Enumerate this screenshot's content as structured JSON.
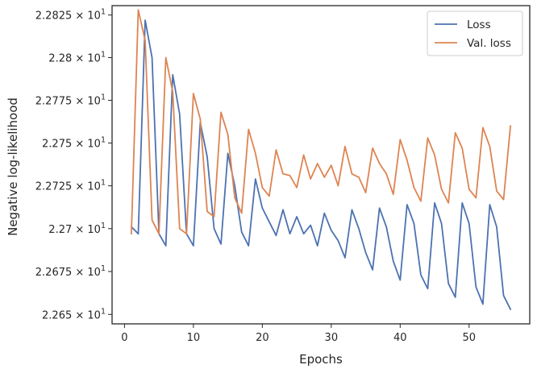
{
  "chart_data": {
    "type": "line",
    "title": "",
    "xlabel": "Epochs",
    "ylabel": "Negative log-likelihood",
    "xlim": [
      -1.8,
      58.8
    ],
    "ylim": [
      22.6445,
      22.8305
    ],
    "y_scale": "log",
    "x_ticks": [
      0,
      10,
      20,
      30,
      40,
      50
    ],
    "x_tick_labels": [
      "0",
      "10",
      "20",
      "30",
      "40",
      "50"
    ],
    "y_ticks": [
      22.65,
      22.675,
      22.7,
      22.725,
      22.75,
      22.775,
      22.8,
      22.825
    ],
    "y_tick_labels": [
      {
        "mantissa": "2.265",
        "exp": "1"
      },
      {
        "mantissa": "2.2675",
        "exp": "1"
      },
      {
        "mantissa": "2.27",
        "exp": "1"
      },
      {
        "mantissa": "2.2725",
        "exp": "1"
      },
      {
        "mantissa": "2.275",
        "exp": "1"
      },
      {
        "mantissa": "2.2775",
        "exp": "1"
      },
      {
        "mantissa": "2.28",
        "exp": "1"
      },
      {
        "mantissa": "2.2825",
        "exp": "1"
      }
    ],
    "grid": false,
    "legend_position": "top-right",
    "x": [
      1,
      2,
      3,
      4,
      5,
      6,
      7,
      8,
      9,
      10,
      11,
      12,
      13,
      14,
      15,
      16,
      17,
      18,
      19,
      20,
      21,
      22,
      23,
      24,
      25,
      26,
      27,
      28,
      29,
      30,
      31,
      32,
      33,
      34,
      35,
      36,
      37,
      38,
      39,
      40,
      41,
      42,
      43,
      44,
      45,
      46,
      47,
      48,
      49,
      50,
      51,
      52,
      53,
      54,
      55,
      56
    ],
    "series": [
      {
        "name": "Loss",
        "color": "#4c72b0",
        "values": [
          22.701,
          22.697,
          22.822,
          22.8,
          22.697,
          22.69,
          22.79,
          22.767,
          22.697,
          22.69,
          22.762,
          22.742,
          22.7,
          22.691,
          22.744,
          22.725,
          22.698,
          22.69,
          22.729,
          22.712,
          22.704,
          22.696,
          22.711,
          22.697,
          22.707,
          22.697,
          22.702,
          22.69,
          22.709,
          22.699,
          22.693,
          22.683,
          22.711,
          22.7,
          22.686,
          22.676,
          22.712,
          22.701,
          22.681,
          22.67,
          22.714,
          22.703,
          22.673,
          22.665,
          22.715,
          22.703,
          22.668,
          22.66,
          22.715,
          22.703,
          22.666,
          22.656,
          22.714,
          22.701,
          22.661,
          22.653
        ]
      },
      {
        "name": "Val. loss",
        "color": "#dd8452",
        "values": [
          22.697,
          22.828,
          22.81,
          22.705,
          22.697,
          22.8,
          22.78,
          22.7,
          22.697,
          22.779,
          22.764,
          22.71,
          22.707,
          22.768,
          22.755,
          22.718,
          22.709,
          22.758,
          22.744,
          22.724,
          22.719,
          22.746,
          22.732,
          22.731,
          22.724,
          22.743,
          22.729,
          22.738,
          22.73,
          22.737,
          22.725,
          22.748,
          22.732,
          22.73,
          22.721,
          22.747,
          22.738,
          22.732,
          22.72,
          22.752,
          22.74,
          22.724,
          22.716,
          22.753,
          22.743,
          22.723,
          22.715,
          22.756,
          22.747,
          22.723,
          22.718,
          22.759,
          22.748,
          22.722,
          22.717,
          22.76
        ]
      }
    ]
  }
}
